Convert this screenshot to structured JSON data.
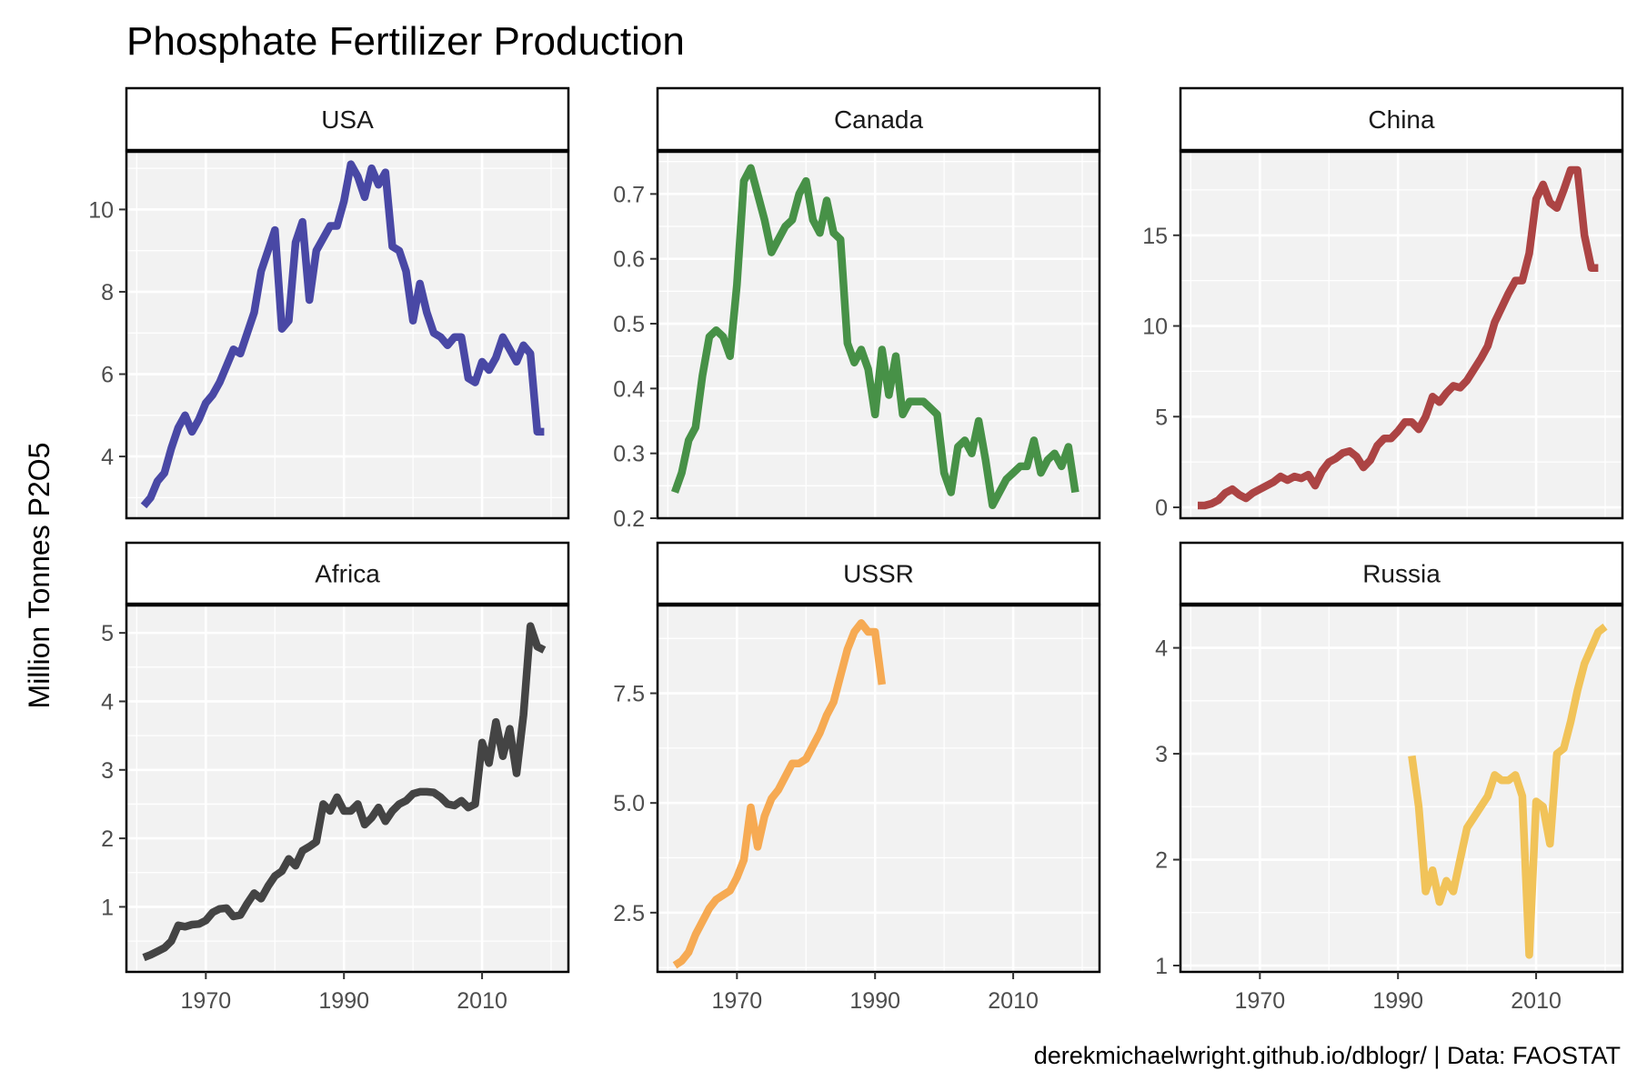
{
  "title": "Phosphate Fertilizer Production",
  "y_axis_label": "Million Tonnes P2O5",
  "caption": "derekmichaelwright.github.io/dblogr/ | Data: FAOSTAT",
  "chart_data": [
    {
      "type": "line",
      "panel": "USA",
      "color": "#3f3ea0",
      "xlim": [
        1958.5,
        2022.5
      ],
      "ylim": [
        2.5,
        11.4
      ],
      "x_ticks": [
        "1970",
        "1990",
        "2010"
      ],
      "y_ticks": [
        "4",
        "6",
        "8",
        "10"
      ],
      "x": [
        1961,
        1962,
        1963,
        1964,
        1965,
        1966,
        1967,
        1968,
        1969,
        1970,
        1971,
        1972,
        1973,
        1974,
        1975,
        1976,
        1977,
        1978,
        1979,
        1980,
        1981,
        1982,
        1983,
        1984,
        1985,
        1986,
        1987,
        1988,
        1989,
        1990,
        1991,
        1992,
        1993,
        1994,
        1995,
        1996,
        1997,
        1998,
        1999,
        2000,
        2001,
        2002,
        2003,
        2004,
        2005,
        2006,
        2007,
        2008,
        2009,
        2010,
        2011,
        2012,
        2013,
        2014,
        2015,
        2016,
        2017,
        2018,
        2019
      ],
      "values": [
        2.8,
        3.0,
        3.4,
        3.6,
        4.2,
        4.7,
        5.0,
        4.6,
        4.9,
        5.3,
        5.5,
        5.8,
        6.2,
        6.6,
        6.5,
        7.0,
        7.5,
        8.5,
        9.0,
        9.5,
        7.1,
        7.3,
        9.2,
        9.7,
        7.8,
        9.0,
        9.3,
        9.6,
        9.6,
        10.2,
        11.1,
        10.8,
        10.3,
        11.0,
        10.6,
        10.9,
        9.1,
        9.0,
        8.5,
        7.3,
        8.2,
        7.5,
        7.0,
        6.9,
        6.7,
        6.9,
        6.9,
        5.9,
        5.8,
        6.3,
        6.1,
        6.4,
        6.9,
        6.6,
        6.3,
        6.7,
        6.5,
        4.6,
        4.6
      ]
    },
    {
      "type": "line",
      "panel": "Canada",
      "color": "#3d8b3d",
      "xlim": [
        1958.5,
        2022.5
      ],
      "ylim": [
        0.2,
        0.765
      ],
      "x_ticks": [
        "1970",
        "1990",
        "2010"
      ],
      "y_ticks": [
        "0.2",
        "0.3",
        "0.4",
        "0.5",
        "0.6",
        "0.7"
      ],
      "x": [
        1961,
        1962,
        1963,
        1964,
        1965,
        1966,
        1967,
        1968,
        1969,
        1970,
        1971,
        1972,
        1973,
        1974,
        1975,
        1976,
        1977,
        1978,
        1979,
        1980,
        1981,
        1982,
        1983,
        1984,
        1985,
        1986,
        1987,
        1988,
        1989,
        1990,
        1991,
        1992,
        1993,
        1994,
        1995,
        1996,
        1997,
        1998,
        1999,
        2000,
        2001,
        2002,
        2003,
        2004,
        2005,
        2006,
        2007,
        2008,
        2009,
        2010,
        2011,
        2012,
        2013,
        2014,
        2015,
        2016,
        2017,
        2018,
        2019
      ],
      "values": [
        0.24,
        0.27,
        0.32,
        0.34,
        0.42,
        0.48,
        0.49,
        0.48,
        0.45,
        0.56,
        0.72,
        0.74,
        0.7,
        0.66,
        0.61,
        0.63,
        0.65,
        0.66,
        0.7,
        0.72,
        0.66,
        0.64,
        0.69,
        0.64,
        0.63,
        0.47,
        0.44,
        0.46,
        0.43,
        0.36,
        0.46,
        0.39,
        0.45,
        0.36,
        0.38,
        0.38,
        0.38,
        0.37,
        0.36,
        0.27,
        0.24,
        0.31,
        0.32,
        0.3,
        0.35,
        0.29,
        0.22,
        0.24,
        0.26,
        0.27,
        0.28,
        0.28,
        0.32,
        0.27,
        0.29,
        0.3,
        0.28,
        0.31,
        0.24
      ]
    },
    {
      "type": "line",
      "panel": "China",
      "color": "#a83a3a",
      "xlim": [
        1958.5,
        2022.5
      ],
      "ylim": [
        -0.6,
        19.6
      ],
      "x_ticks": [
        "1970",
        "1990",
        "2010"
      ],
      "y_ticks": [
        "0",
        "5",
        "10",
        "15"
      ],
      "x": [
        1961,
        1962,
        1963,
        1964,
        1965,
        1966,
        1967,
        1968,
        1969,
        1970,
        1971,
        1972,
        1973,
        1974,
        1975,
        1976,
        1977,
        1978,
        1979,
        1980,
        1981,
        1982,
        1983,
        1984,
        1985,
        1986,
        1987,
        1988,
        1989,
        1990,
        1991,
        1992,
        1993,
        1994,
        1995,
        1996,
        1997,
        1998,
        1999,
        2000,
        2001,
        2002,
        2003,
        2004,
        2005,
        2006,
        2007,
        2008,
        2009,
        2010,
        2011,
        2012,
        2013,
        2014,
        2015,
        2016,
        2017,
        2018,
        2019
      ],
      "values": [
        0.1,
        0.1,
        0.2,
        0.4,
        0.8,
        1.0,
        0.7,
        0.5,
        0.8,
        1.0,
        1.2,
        1.4,
        1.7,
        1.5,
        1.7,
        1.6,
        1.8,
        1.2,
        2.0,
        2.5,
        2.7,
        3.0,
        3.1,
        2.8,
        2.2,
        2.6,
        3.4,
        3.8,
        3.8,
        4.2,
        4.7,
        4.7,
        4.3,
        5.0,
        6.1,
        5.8,
        6.3,
        6.7,
        6.6,
        7.0,
        7.6,
        8.2,
        8.9,
        10.2,
        11.0,
        11.8,
        12.5,
        12.5,
        14.0,
        17.0,
        17.8,
        16.8,
        16.5,
        17.5,
        18.6,
        18.6,
        15.0,
        13.2,
        13.2
      ]
    },
    {
      "type": "line",
      "panel": "Africa",
      "color": "#3a3a3a",
      "xlim": [
        1958.5,
        2022.5
      ],
      "ylim": [
        0.05,
        5.4
      ],
      "x_ticks": [
        "1970",
        "1990",
        "2010"
      ],
      "y_ticks": [
        "1",
        "2",
        "3",
        "4",
        "5"
      ],
      "x": [
        1961,
        1962,
        1963,
        1964,
        1965,
        1966,
        1967,
        1968,
        1969,
        1970,
        1971,
        1972,
        1973,
        1974,
        1975,
        1976,
        1977,
        1978,
        1979,
        1980,
        1981,
        1982,
        1983,
        1984,
        1985,
        1986,
        1987,
        1988,
        1989,
        1990,
        1991,
        1992,
        1993,
        1994,
        1995,
        1996,
        1997,
        1998,
        1999,
        2000,
        2001,
        2002,
        2003,
        2004,
        2005,
        2006,
        2007,
        2008,
        2009,
        2010,
        2011,
        2012,
        2013,
        2014,
        2015,
        2016,
        2017,
        2018,
        2019
      ],
      "values": [
        0.26,
        0.3,
        0.35,
        0.4,
        0.5,
        0.73,
        0.71,
        0.74,
        0.75,
        0.8,
        0.92,
        0.97,
        0.98,
        0.86,
        0.88,
        1.05,
        1.2,
        1.12,
        1.3,
        1.45,
        1.52,
        1.7,
        1.6,
        1.82,
        1.88,
        1.95,
        2.5,
        2.4,
        2.6,
        2.4,
        2.4,
        2.5,
        2.2,
        2.3,
        2.45,
        2.25,
        2.4,
        2.5,
        2.55,
        2.65,
        2.68,
        2.68,
        2.67,
        2.6,
        2.5,
        2.48,
        2.55,
        2.45,
        2.5,
        3.4,
        3.1,
        3.7,
        3.2,
        3.6,
        2.95,
        3.8,
        5.1,
        4.8,
        4.75
      ]
    },
    {
      "type": "line",
      "panel": "USSR",
      "color": "#f5a54a",
      "xlim": [
        1958.5,
        2022.5
      ],
      "ylim": [
        1.15,
        9.5
      ],
      "x_ticks": [
        "1970",
        "1990",
        "2010"
      ],
      "y_ticks": [
        "2.5",
        "5.0",
        "7.5"
      ],
      "x": [
        1961,
        1962,
        1963,
        1964,
        1965,
        1966,
        1967,
        1968,
        1969,
        1970,
        1971,
        1972,
        1973,
        1974,
        1975,
        1976,
        1977,
        1978,
        1979,
        1980,
        1981,
        1982,
        1983,
        1984,
        1985,
        1986,
        1987,
        1988,
        1989,
        1990,
        1991
      ],
      "values": [
        1.3,
        1.4,
        1.6,
        2.0,
        2.3,
        2.6,
        2.8,
        2.9,
        3.0,
        3.3,
        3.7,
        4.9,
        4.0,
        4.7,
        5.1,
        5.3,
        5.6,
        5.9,
        5.9,
        6.0,
        6.3,
        6.6,
        7.0,
        7.3,
        7.9,
        8.5,
        8.9,
        9.1,
        8.9,
        8.9,
        7.7
      ]
    },
    {
      "type": "line",
      "panel": "Russia",
      "color": "#f0c050",
      "xlim": [
        1958.5,
        2022.5
      ],
      "ylim": [
        0.94,
        4.4
      ],
      "x_ticks": [
        "1970",
        "1990",
        "2010"
      ],
      "y_ticks": [
        "1",
        "2",
        "3",
        "4"
      ],
      "x": [
        1992,
        1993,
        1994,
        1995,
        1996,
        1997,
        1998,
        1999,
        2000,
        2001,
        2002,
        2003,
        2004,
        2005,
        2006,
        2007,
        2008,
        2009,
        2010,
        2011,
        2012,
        2013,
        2014,
        2015,
        2016,
        2017,
        2018,
        2019,
        2020
      ],
      "values": [
        2.98,
        2.5,
        1.7,
        1.9,
        1.6,
        1.8,
        1.7,
        2.0,
        2.3,
        2.4,
        2.5,
        2.6,
        2.8,
        2.75,
        2.75,
        2.8,
        2.6,
        1.1,
        2.55,
        2.5,
        2.15,
        3.0,
        3.05,
        3.3,
        3.6,
        3.85,
        4.0,
        4.15,
        4.2
      ]
    }
  ]
}
